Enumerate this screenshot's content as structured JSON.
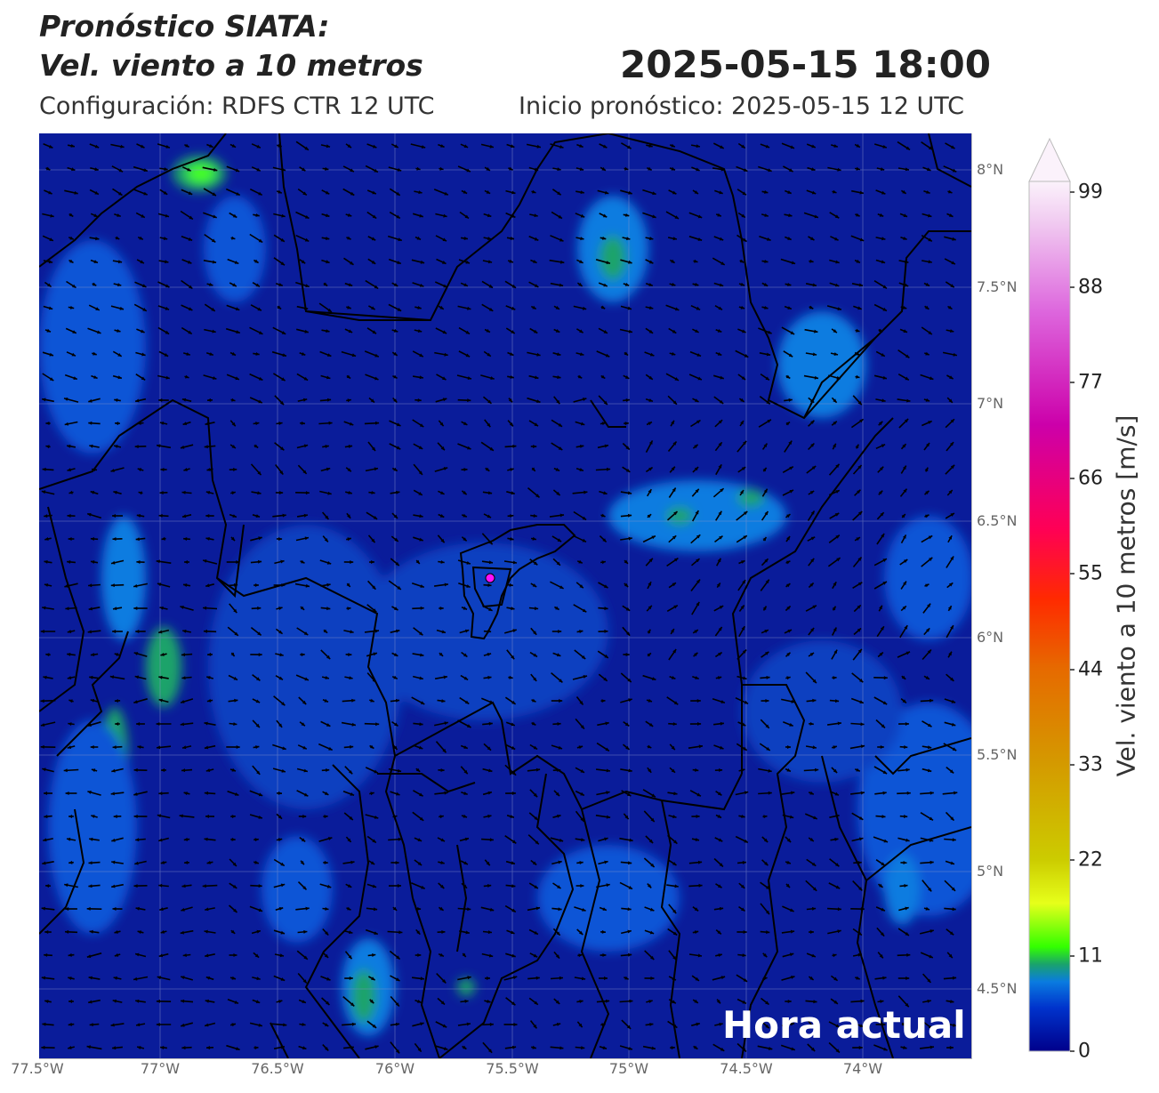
{
  "header": {
    "title_line1": "Pronóstico SIATA:",
    "title_line2": "Vel. viento a 10 metros",
    "datetime": "2025-05-15 18:00",
    "config": "Configuración: RDFS CTR 12 UTC",
    "init": "Inicio pronóstico: 2025-05-15 12 UTC"
  },
  "map": {
    "lat_labels": [
      "8°N",
      "7.5°N",
      "7°N",
      "6.5°N",
      "6°N",
      "5.5°N",
      "5°N",
      "4.5°N"
    ],
    "lon_labels": [
      "77.5°W",
      "77°W",
      "76.5°W",
      "76°W",
      "75.5°W",
      "75°W",
      "74.5°W",
      "74°W"
    ],
    "overlay_text": "Hora actual",
    "marker_color": "#ff10ff",
    "background_color": "#0a1c9a"
  },
  "colorbar": {
    "title": "Vel. viento a 10 metros [m/s]",
    "ticks": [
      "99",
      "88",
      "77",
      "66",
      "55",
      "44",
      "33",
      "22",
      "11",
      "0"
    ],
    "colors": [
      "#00008b",
      "#0033cc",
      "#0a7be0",
      "#1aa36b",
      "#33ff00",
      "#e6ff1a",
      "#cccc00",
      "#d49a00",
      "#e66a00",
      "#ff2a00",
      "#ff0055",
      "#cc00aa",
      "#dd66dd",
      "#f0c8f0",
      "#fbf2fb"
    ]
  }
}
